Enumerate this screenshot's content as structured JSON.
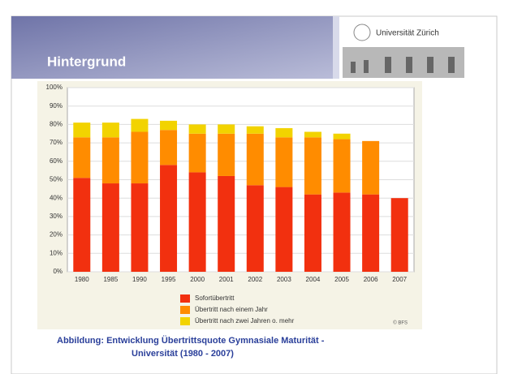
{
  "slide": {
    "title": "Hintergrund",
    "logo": "Universität Zürich",
    "caption_lines": [
      "Abbildung:  Entwicklung Übertrittsquote Gymnasiale Maturität -",
      "Universität (1980 - 2007)"
    ],
    "source": "© BFS"
  },
  "chart_data": {
    "type": "stacked_bar",
    "categories": [
      "1980",
      "1985",
      "1990",
      "1995",
      "2000",
      "2001",
      "2002",
      "2003",
      "2004",
      "2005",
      "2006",
      "2007"
    ],
    "series": [
      {
        "name": "Sofortübertritt",
        "color": "#f2300f",
        "values": [
          51,
          48,
          48,
          58,
          54,
          52,
          47,
          46,
          42,
          43,
          42,
          40
        ]
      },
      {
        "name": "Übertritt nach einem Jahr",
        "color": "#ff8c00",
        "values": [
          22,
          25,
          28,
          19,
          21,
          23,
          28,
          27,
          31,
          29,
          29,
          null
        ]
      },
      {
        "name": "Übertritt nach zwei Jahren o. mehr",
        "color": "#f2d300",
        "values": [
          8,
          8,
          7,
          5,
          5,
          5,
          4,
          5,
          3,
          3,
          null,
          null
        ]
      }
    ],
    "ylim": [
      0,
      100
    ],
    "yticks": [
      {
        "value": 0,
        "label": "0%"
      },
      {
        "value": 10,
        "label": "10%"
      },
      {
        "value": 20,
        "label": "20%"
      },
      {
        "value": 30,
        "label": "30%"
      },
      {
        "value": 40,
        "label": "40%"
      },
      {
        "value": 50,
        "label": "50%"
      },
      {
        "value": 60,
        "label": "60%"
      },
      {
        "value": 70,
        "label": "70%"
      },
      {
        "value": 80,
        "label": "80%"
      },
      {
        "value": 90,
        "label": "90%"
      },
      {
        "value": 100,
        "label": "100%"
      }
    ],
    "grid": true
  }
}
